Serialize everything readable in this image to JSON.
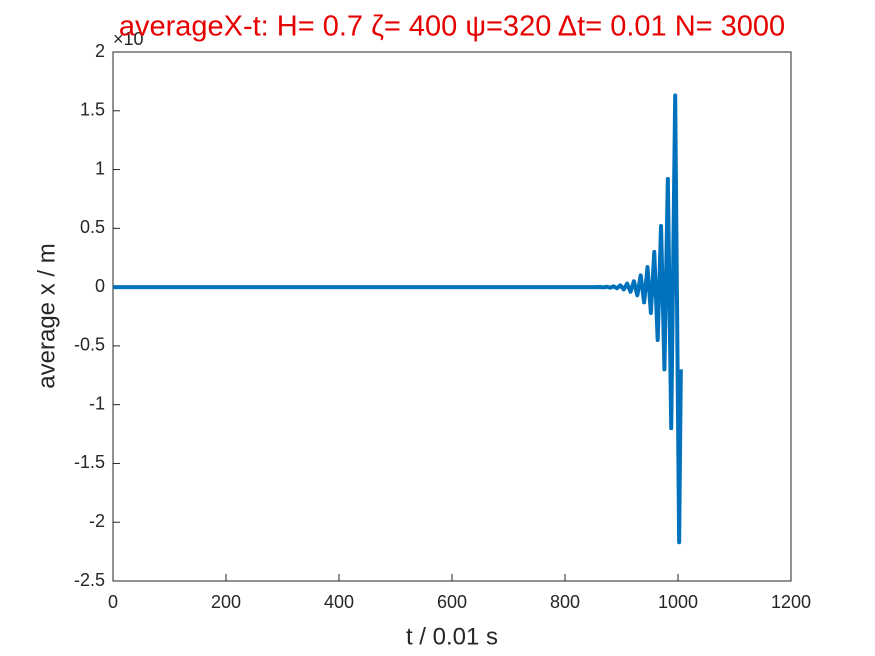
{
  "chart_data": {
    "type": "line",
    "title": "averageX-t:  H= 0.7 ζ= 400 ψ=320 Δt= 0.01 N= 3000",
    "title_color": "#e60000",
    "exponent_label": "×10",
    "xlabel": "t / 0.01 s",
    "ylabel": "average x / m",
    "x": [
      0,
      850,
      862,
      868,
      874,
      880,
      886,
      892,
      898,
      904,
      910,
      916,
      922,
      928,
      934,
      940,
      946,
      952,
      958,
      964,
      970,
      976,
      982,
      988,
      995,
      1002,
      1005
    ],
    "series": [
      {
        "name": "average x",
        "color": "#0072bd",
        "values": [
          0,
          0,
          0.001,
          -0.002,
          0.003,
          -0.005,
          0.007,
          -0.01,
          0.015,
          -0.02,
          0.03,
          -0.04,
          0.05,
          -0.07,
          0.1,
          -0.13,
          0.17,
          -0.22,
          0.3,
          -0.45,
          0.52,
          -0.7,
          0.92,
          -1.2,
          1.63,
          -2.17,
          -0.7
        ]
      }
    ],
    "xlim": [
      0,
      1200
    ],
    "xticks": [
      0,
      200,
      400,
      600,
      800,
      1000,
      1200
    ],
    "ylim": [
      -2.5,
      2
    ],
    "yticks": [
      -2.5,
      -2,
      -1.5,
      -1,
      -0.5,
      0,
      0.5,
      1,
      1.5,
      2
    ],
    "grid": false
  }
}
